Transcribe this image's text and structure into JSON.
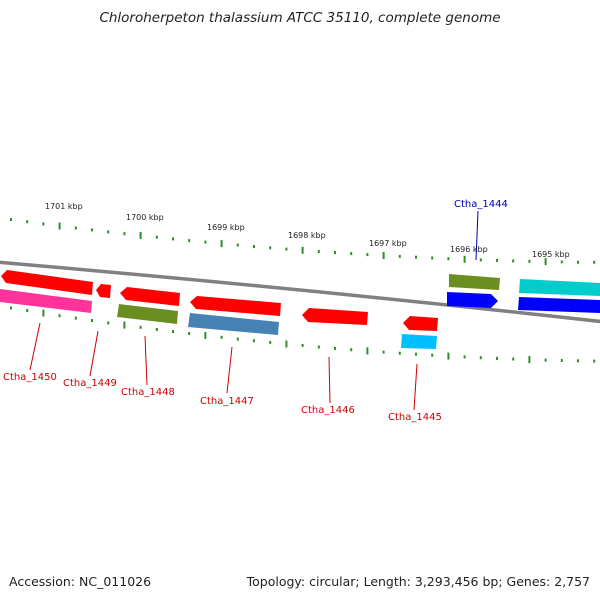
{
  "title": "Chloroherpeton thalassium ATCC 35110, complete genome",
  "footer": {
    "accession": "Accession: NC_011026",
    "summary": "Topology: circular; Length: 3,293,456 bp; Genes: 2,757"
  },
  "colors": {
    "backbone": "#808080",
    "tick": "#2e8b2e",
    "label_reverse": "#cc0000",
    "label_forward": "#0000aa"
  },
  "scale_labels": [
    "1701 kbp",
    "1700 kbp",
    "1699 kbp",
    "1698 kbp",
    "1697 kbp",
    "1696 kbp",
    "1695 kbp"
  ],
  "genes": [
    {
      "name": "Ctha_1450",
      "strand": "reverse",
      "color": "#ff0000",
      "product_color": "#ff3399"
    },
    {
      "name": "Ctha_1449",
      "strand": "reverse",
      "color": "#ff0000",
      "product_color": ""
    },
    {
      "name": "Ctha_1448",
      "strand": "reverse",
      "color": "#ff0000",
      "product_color": "#6b8e23"
    },
    {
      "name": "Ctha_1447",
      "strand": "reverse",
      "color": "#ff0000",
      "product_color": "#4682b4"
    },
    {
      "name": "Ctha_1446",
      "strand": "reverse",
      "color": "#ff0000",
      "product_color": ""
    },
    {
      "name": "Ctha_1445",
      "strand": "reverse",
      "color": "#ff0000",
      "product_color": "#00bfff"
    },
    {
      "name": "Ctha_1444",
      "strand": "forward",
      "color": "#0000ff",
      "product_color": "#6b8e23"
    },
    {
      "name": "",
      "strand": "forward",
      "color": "#0000ff",
      "product_color": "#00cccc"
    }
  ]
}
